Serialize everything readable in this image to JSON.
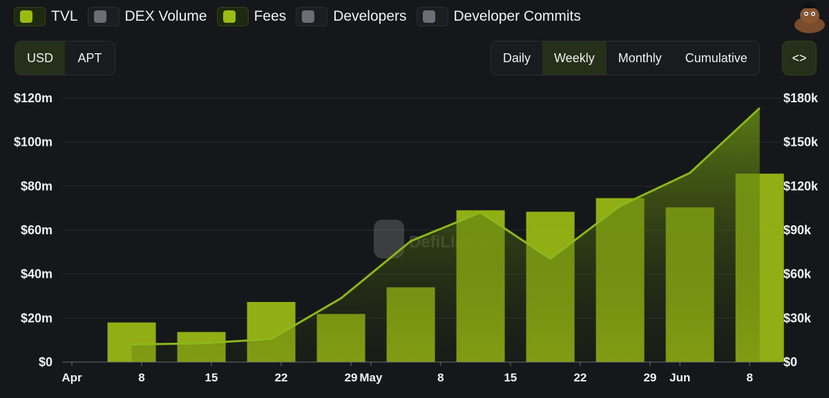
{
  "legend": [
    {
      "label": "TVL",
      "active": true
    },
    {
      "label": "DEX Volume",
      "active": false
    },
    {
      "label": "Fees",
      "active": true
    },
    {
      "label": "Developers",
      "active": false
    },
    {
      "label": "Developer Commits",
      "active": false
    }
  ],
  "currency_options": [
    {
      "label": "USD",
      "active": true
    },
    {
      "label": "APT",
      "active": false
    }
  ],
  "period_options": [
    {
      "label": "Daily",
      "active": false
    },
    {
      "label": "Weekly",
      "active": true
    },
    {
      "label": "Monthly",
      "active": false
    },
    {
      "label": "Cumulative",
      "active": false
    }
  ],
  "embed_label": "<>",
  "watermark": "DefiLlama",
  "colors": {
    "bar": "#9cbc13",
    "line": "#8cb81d",
    "background": "#16171a"
  },
  "chart_data": {
    "type": "bar",
    "title": "",
    "x_ticks": [
      "Apr",
      "8",
      "15",
      "22",
      "29",
      "May",
      "8",
      "15",
      "22",
      "29",
      "Jun",
      "8"
    ],
    "left_axis": {
      "ticks": [
        "$0",
        "$20m",
        "$40m",
        "$60m",
        "$80m",
        "$100m",
        "$120m"
      ],
      "range": [
        0,
        120000000
      ]
    },
    "right_axis": {
      "ticks": [
        "$0",
        "$30k",
        "$60k",
        "$90k",
        "$120k",
        "$150k",
        "$180k"
      ],
      "range": [
        0,
        180000
      ]
    },
    "grid": true,
    "legend_position": "top-left",
    "x": [
      "2024-04-07",
      "2024-04-14",
      "2024-04-21",
      "2024-04-28",
      "2024-05-05",
      "2024-05-12",
      "2024-05-19",
      "2024-05-26",
      "2024-06-02",
      "2024-06-09"
    ],
    "series": [
      {
        "name": "Fees",
        "type": "bar",
        "axis": "right",
        "values": [
          27000,
          20500,
          41000,
          32800,
          51000,
          103500,
          102500,
          111800,
          105500,
          128500
        ]
      },
      {
        "name": "TVL",
        "type": "area",
        "axis": "left",
        "values": [
          8000000,
          8500000,
          10500000,
          29000000,
          55000000,
          68000000,
          47000000,
          71000000,
          86000000,
          115500000
        ]
      }
    ]
  }
}
